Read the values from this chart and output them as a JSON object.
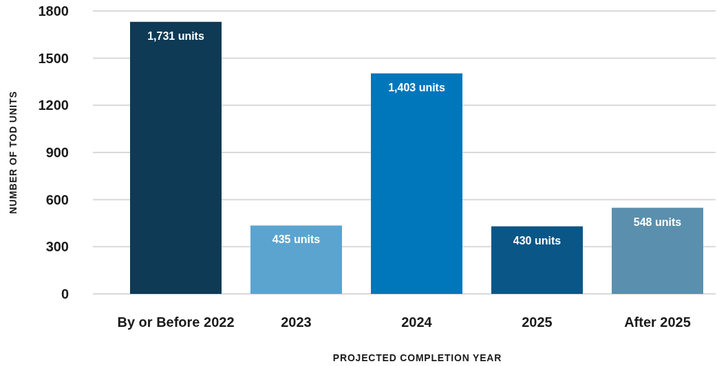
{
  "chart_data": {
    "type": "bar",
    "xlabel": "PROJECTED COMPLETION YEAR",
    "ylabel": "NUMBER OF TOD UNITS",
    "categories": [
      "By or Before 2022",
      "2023",
      "2024",
      "2025",
      "After 2025"
    ],
    "values": [
      1731,
      435,
      1403,
      430,
      548
    ],
    "colors": [
      "#0e3a55",
      "#5ba4d0",
      "#0077bb",
      "#0a5686",
      "#5a8fae"
    ],
    "value_labels": [
      "1,731 units",
      "435 units",
      "1,403 units",
      "430 units",
      "548 units"
    ],
    "ylim": [
      0,
      1800
    ],
    "yticks": [
      0,
      300,
      600,
      900,
      1200,
      1500,
      1800
    ],
    "grid": "y"
  }
}
